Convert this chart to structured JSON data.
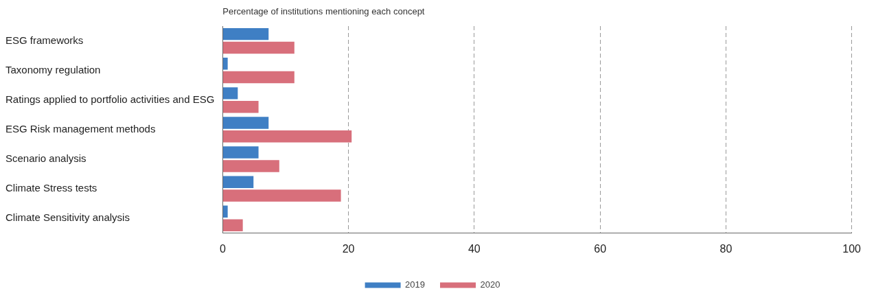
{
  "chart_data": {
    "type": "bar",
    "orientation": "horizontal",
    "title": "Percentage of institutions mentioning each concept",
    "categories": [
      "ESG frameworks",
      "Taxonomy regulation",
      "Ratings applied to portfolio activities and ESG",
      "ESG Risk management methods",
      "Scenario analysis",
      "Climate Stress tests",
      "Climate Sensitivity analysis"
    ],
    "series": [
      {
        "name": "2019",
        "color": "#3f7fc4",
        "values": [
          7.3,
          0.8,
          2.4,
          7.3,
          5.7,
          4.9,
          0.8
        ]
      },
      {
        "name": "2020",
        "color": "#d86f7b",
        "values": [
          11.4,
          11.4,
          5.7,
          20.5,
          9.0,
          18.8,
          3.2
        ]
      }
    ],
    "xlim": [
      0,
      100
    ],
    "xticks": [
      0,
      20,
      40,
      60,
      80,
      100
    ],
    "grid": "x",
    "legend": "bottom"
  }
}
